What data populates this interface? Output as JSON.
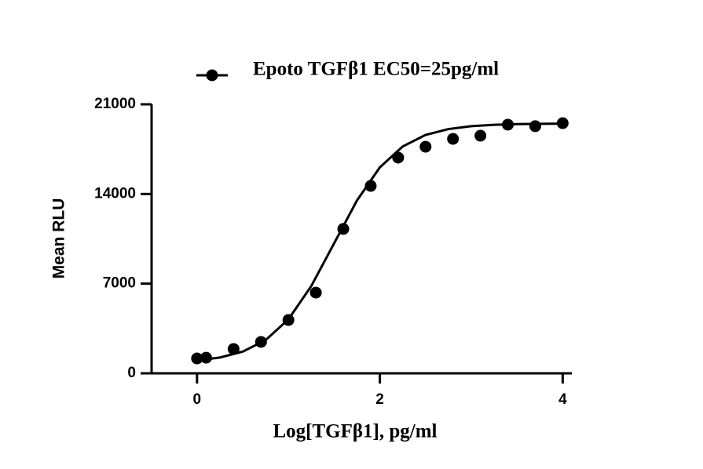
{
  "chart_data": {
    "type": "scatter",
    "x_label": "Log[TGFβ1], pg/ml",
    "y_label": "Mean RLU",
    "xlim": [
      -0.6,
      4.1
    ],
    "ylim": [
      0,
      21000
    ],
    "xticks": [
      0,
      2,
      4
    ],
    "yticks": [
      0,
      7000,
      14000,
      21000
    ],
    "grid": false,
    "legend": "top",
    "series": [
      {
        "name": "Epoto TGFβ1 EC50=25pg/ml",
        "color": "#000000",
        "x": [
          0,
          0.1,
          0.4,
          0.7,
          1.0,
          1.3,
          1.6,
          1.9,
          2.2,
          2.5,
          2.8,
          3.1,
          3.4,
          3.7,
          4.0
        ],
        "values": [
          1160,
          1220,
          1900,
          2450,
          4160,
          6300,
          11270,
          14630,
          16840,
          17690,
          18300,
          18550,
          19410,
          19290,
          19530
        ],
        "fit": {
          "x": [
            0,
            0.25,
            0.5,
            0.75,
            1.0,
            1.25,
            1.5,
            1.75,
            2.0,
            2.25,
            2.5,
            2.75,
            3.0,
            3.25,
            3.5,
            3.75,
            4.0
          ],
          "values": [
            1008,
            1233,
            1693,
            2591,
            4219,
            6813,
            10150,
            13495,
            16078,
            17708,
            18608,
            19067,
            19293,
            19401,
            19453,
            19478,
            19490
          ]
        }
      }
    ]
  }
}
